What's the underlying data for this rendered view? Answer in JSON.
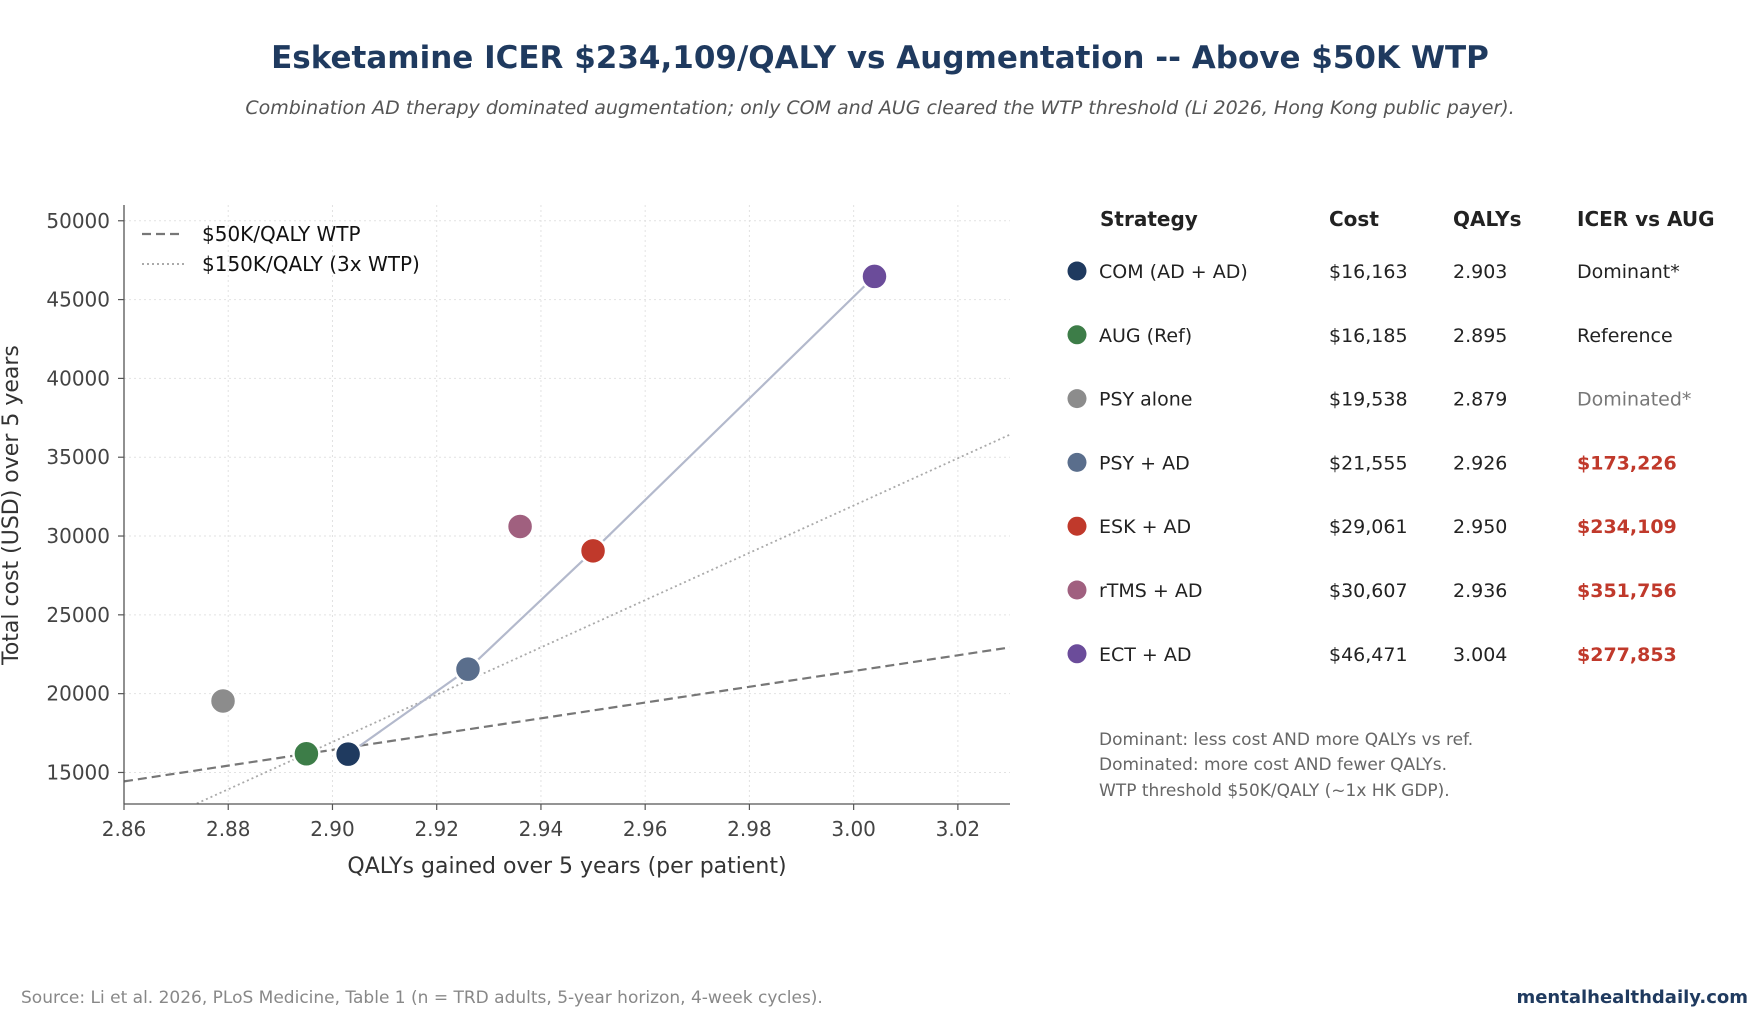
{
  "title": "Esketamine ICER $234,109/QALY vs Augmentation -- Above $50K WTP",
  "subtitle": "Combination AD therapy dominated augmentation; only COM and AUG cleared the WTP threshold (Li 2026, Hong Kong public payer).",
  "source": "Source: Li et al. 2026, PLoS Medicine, Table 1 (n = TRD adults, 5-year horizon, 4-week cycles).",
  "brand": "mentalhealthdaily.com",
  "chart_data": {
    "type": "scatter",
    "xlabel": "QALYs gained over 5 years (per patient)",
    "ylabel": "Total cost (USD) over 5 years",
    "xlim": [
      2.86,
      3.03
    ],
    "ylim": [
      13000,
      51000
    ],
    "xticks": [
      2.86,
      2.88,
      2.9,
      2.92,
      2.94,
      2.96,
      2.98,
      3.0,
      3.02
    ],
    "xtick_labels": [
      "2.86",
      "2.88",
      "2.90",
      "2.92",
      "2.94",
      "2.96",
      "2.98",
      "3.00",
      "3.02"
    ],
    "yticks": [
      15000,
      20000,
      25000,
      30000,
      35000,
      40000,
      45000,
      50000
    ],
    "ytick_labels": [
      "15000",
      "20000",
      "25000",
      "30000",
      "35000",
      "40000",
      "45000",
      "50000"
    ],
    "grid": true,
    "legend_position": "top-left",
    "reference": {
      "x": 2.895,
      "y": 16185
    },
    "wtp_lines": [
      {
        "label": "$50K/QALY WTP",
        "slope": 50000,
        "style": "dashed",
        "color": "#777777"
      },
      {
        "label": "$150K/QALY (3x WTP)",
        "slope": 150000,
        "style": "dotted",
        "color": "#aaaaaa"
      }
    ],
    "frontier": {
      "color": "#b3b9cc",
      "points": [
        [
          2.903,
          16163
        ],
        [
          2.926,
          21555
        ],
        [
          2.95,
          29061
        ],
        [
          3.004,
          46471
        ]
      ]
    },
    "points": [
      {
        "x": 2.903,
        "y": 16163,
        "color": "#1f3a5f"
      },
      {
        "x": 2.895,
        "y": 16185,
        "color": "#3d7d48"
      },
      {
        "x": 2.879,
        "y": 19538,
        "color": "#8c8c8c"
      },
      {
        "x": 2.926,
        "y": 21555,
        "color": "#5a6e8c"
      },
      {
        "x": 2.95,
        "y": 29061,
        "color": "#c0392b"
      },
      {
        "x": 2.936,
        "y": 30607,
        "color": "#a0607f"
      },
      {
        "x": 3.004,
        "y": 46471,
        "color": "#6b4c9a"
      }
    ]
  },
  "table": {
    "headers": [
      "Strategy",
      "Cost",
      "QALYs",
      "ICER vs AUG"
    ],
    "rows": [
      {
        "strategy": "COM (AD + AD)",
        "cost": "$16,163",
        "qalys": "2.903",
        "icer": "Dominant*",
        "style": "normal",
        "color": "#1f3a5f"
      },
      {
        "strategy": "AUG (Ref)",
        "cost": "$16,185",
        "qalys": "2.895",
        "icer": "Reference",
        "style": "normal",
        "color": "#3d7d48"
      },
      {
        "strategy": "PSY alone",
        "cost": "$19,538",
        "qalys": "2.879",
        "icer": "Dominated*",
        "style": "muted",
        "color": "#8c8c8c"
      },
      {
        "strategy": "PSY + AD",
        "cost": "$21,555",
        "qalys": "2.926",
        "icer": "$173,226",
        "style": "red",
        "color": "#5a6e8c"
      },
      {
        "strategy": "ESK + AD",
        "cost": "$29,061",
        "qalys": "2.950",
        "icer": "$234,109",
        "style": "red",
        "color": "#c0392b"
      },
      {
        "strategy": "rTMS + AD",
        "cost": "$30,607",
        "qalys": "2.936",
        "icer": "$351,756",
        "style": "red",
        "color": "#a0607f"
      },
      {
        "strategy": "ECT + AD",
        "cost": "$46,471",
        "qalys": "3.004",
        "icer": "$277,853",
        "style": "red",
        "color": "#6b4c9a"
      }
    ]
  },
  "notes": [
    "Dominant: less cost AND more QALYs vs ref.",
    "Dominated: more cost AND fewer QALYs.",
    "WTP threshold $50K/QALY (~1x HK GDP)."
  ]
}
